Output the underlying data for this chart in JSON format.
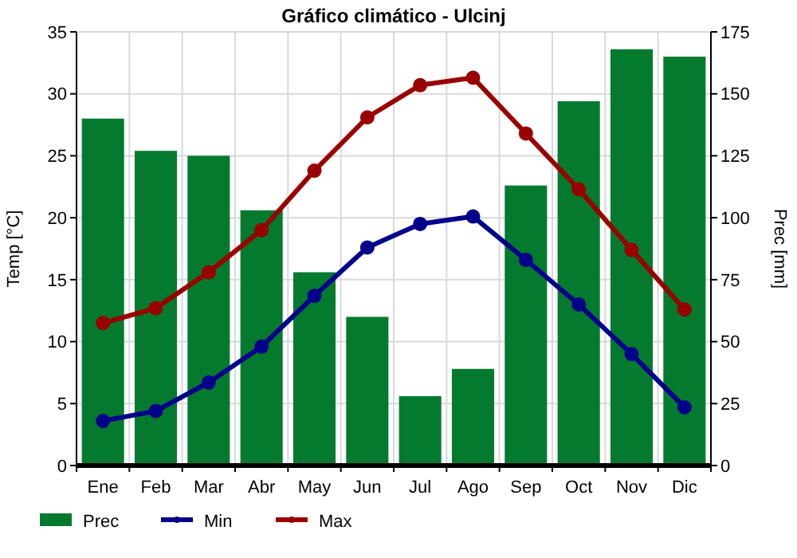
{
  "chart_data": {
    "type": "bar",
    "title": "Gráfico climático - Ulcinj",
    "ylabel": "Temp [°C]",
    "y2label": "Prec [mm]",
    "categories": [
      "Ene",
      "Feb",
      "Mar",
      "Abr",
      "May",
      "Jun",
      "Jul",
      "Ago",
      "Sep",
      "Oct",
      "Nov",
      "Dic"
    ],
    "series": [
      {
        "name": "Prec",
        "axis": "y2",
        "color": "#047a2e",
        "values": [
          140,
          127,
          125,
          103,
          78,
          60,
          28,
          39,
          113,
          147,
          168,
          165
        ]
      },
      {
        "name": "Min",
        "type": "line",
        "color": "#00008b",
        "marker": "circle",
        "values": [
          3.6,
          4.4,
          6.7,
          9.6,
          13.7,
          17.6,
          19.5,
          20.1,
          16.6,
          13.0,
          9.0,
          4.7
        ]
      },
      {
        "name": "Max",
        "type": "line",
        "color": "#990000",
        "marker": "circle",
        "values": [
          11.5,
          12.7,
          15.6,
          19.0,
          23.8,
          28.1,
          30.7,
          31.3,
          26.8,
          22.3,
          17.4,
          12.6
        ]
      }
    ],
    "ylim": [
      0,
      35
    ],
    "yticks": [
      0,
      5,
      10,
      15,
      20,
      25,
      30,
      35
    ],
    "y2lim": [
      0,
      175
    ],
    "y2ticks": [
      0,
      25,
      50,
      75,
      100,
      125,
      150,
      175
    ],
    "grid": true,
    "legend": "bottom"
  }
}
